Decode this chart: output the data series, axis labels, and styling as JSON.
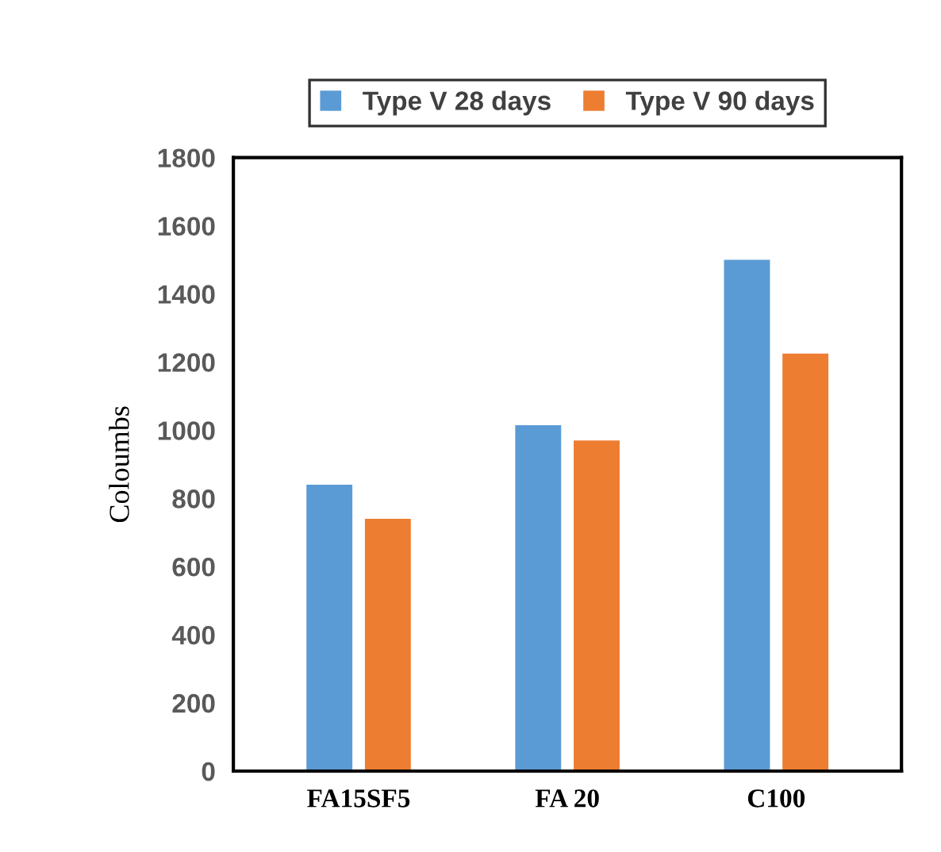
{
  "chart_data": {
    "type": "bar",
    "ylabel": "Coloumbs",
    "categories": [
      "FA15SF5",
      "FA 20",
      "C100"
    ],
    "series": [
      {
        "name": "Type V 28 days",
        "color": "#5b9bd5",
        "values": [
          840,
          1015,
          1500
        ]
      },
      {
        "name": "Type V 90 days",
        "color": "#ed7d31",
        "values": [
          740,
          970,
          1225
        ]
      }
    ],
    "ylim": [
      0,
      1800
    ],
    "yticks": [
      0,
      200,
      400,
      600,
      800,
      1000,
      1200,
      1400,
      1600,
      1800
    ],
    "legend": "top"
  }
}
